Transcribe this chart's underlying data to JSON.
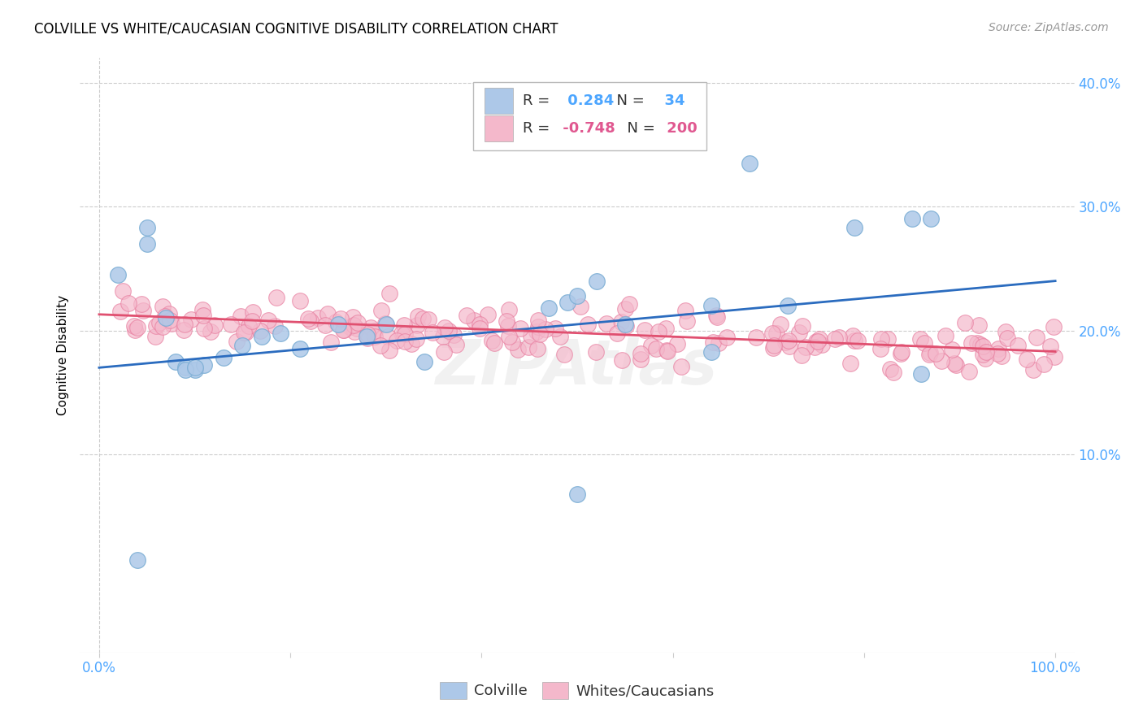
{
  "title": "COLVILLE VS WHITE/CAUCASIAN COGNITIVE DISABILITY CORRELATION CHART",
  "source": "Source: ZipAtlas.com",
  "ylabel": "Cognitive Disability",
  "colville_R": 0.284,
  "colville_N": 34,
  "white_R": -0.748,
  "white_N": 200,
  "colville_color": "#adc8e8",
  "colville_edge": "#7aadd4",
  "white_color": "#f4b8cb",
  "white_edge": "#e87fa0",
  "blue_line_color": "#2b6cbf",
  "pink_line_color": "#e05070",
  "watermark": "ZIPAtlas",
  "colville_x": [
    0.02,
    0.05,
    0.05,
    0.07,
    0.08,
    0.09,
    0.1,
    0.11,
    0.13,
    0.15,
    0.17,
    0.19,
    0.21,
    0.25,
    0.28,
    0.3,
    0.47,
    0.49,
    0.5,
    0.52,
    0.64,
    0.68,
    0.72,
    0.79,
    0.85,
    0.87,
    0.04,
    0.09,
    0.1,
    0.5,
    0.64,
    0.86,
    0.34,
    0.55
  ],
  "colville_y": [
    0.245,
    0.27,
    0.283,
    0.21,
    0.175,
    0.17,
    0.168,
    0.172,
    0.178,
    0.188,
    0.195,
    0.198,
    0.185,
    0.205,
    0.195,
    0.205,
    0.218,
    0.223,
    0.228,
    0.24,
    0.22,
    0.335,
    0.22,
    0.283,
    0.29,
    0.29,
    0.015,
    0.168,
    0.17,
    0.068,
    0.183,
    0.165,
    0.175,
    0.205
  ],
  "blue_line_x": [
    0.0,
    1.0
  ],
  "blue_line_y": [
    0.17,
    0.24
  ],
  "pink_line_x": [
    0.0,
    1.0
  ],
  "pink_line_y": [
    0.213,
    0.183
  ],
  "xlim": [
    0.0,
    1.0
  ],
  "ylim": [
    0.0,
    0.4
  ],
  "y_ticks": [
    0.0,
    0.1,
    0.2,
    0.3,
    0.4
  ],
  "y_tick_labels_right": [
    "",
    "10.0%",
    "20.0%",
    "30.0%",
    "40.0%"
  ],
  "x_tick_vals": [
    0.0,
    0.2,
    0.4,
    0.6,
    0.8,
    1.0
  ],
  "x_tick_labels": [
    "0.0%",
    "",
    "",
    "",
    "",
    "100.0%"
  ],
  "tick_color": "#4da6ff",
  "grid_color": "#cccccc",
  "title_fontsize": 12,
  "source_fontsize": 10,
  "axis_fontsize": 12,
  "legend_fontsize": 13
}
